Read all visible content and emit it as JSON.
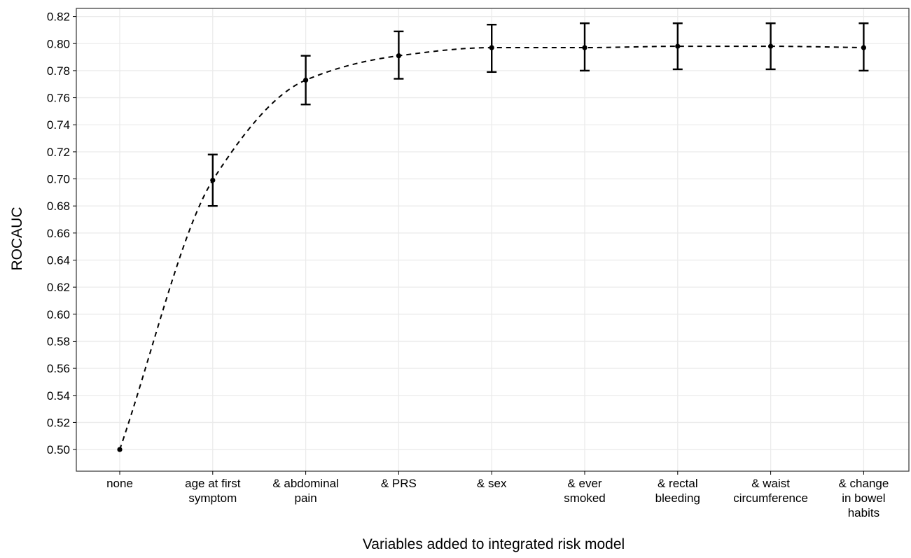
{
  "chart_data": {
    "type": "line",
    "title": "",
    "xlabel": "Variables added to integrated risk model",
    "ylabel": "ROCAUC",
    "categories": [
      [
        "none"
      ],
      [
        "age at first",
        "symptom"
      ],
      [
        "& abdominal",
        "pain"
      ],
      [
        "& PRS"
      ],
      [
        "& sex"
      ],
      [
        "& ever",
        "smoked"
      ],
      [
        "& rectal",
        "bleeding"
      ],
      [
        "& waist",
        "circumference"
      ],
      [
        "& change",
        "in bowel",
        "habits"
      ]
    ],
    "series": [
      {
        "values": [
          0.5,
          0.699,
          0.773,
          0.791,
          0.797,
          0.797,
          0.798,
          0.798,
          0.797
        ],
        "error_low": [
          0.5,
          0.68,
          0.755,
          0.774,
          0.779,
          0.78,
          0.781,
          0.781,
          0.78
        ],
        "error_high": [
          0.5,
          0.718,
          0.791,
          0.809,
          0.814,
          0.815,
          0.815,
          0.815,
          0.815
        ],
        "line_style": "dashed",
        "marker": "point",
        "color": "#000000"
      }
    ],
    "yticks": [
      "0.50",
      "0.52",
      "0.54",
      "0.56",
      "0.58",
      "0.60",
      "0.62",
      "0.64",
      "0.66",
      "0.68",
      "0.70",
      "0.72",
      "0.74",
      "0.76",
      "0.78",
      "0.80",
      "0.82"
    ],
    "ylim": [
      0.484,
      0.826
    ],
    "grid": true,
    "legend": "none",
    "colors": {
      "grid": "#ebebeb",
      "axis": "#000000",
      "line": "#000000"
    }
  }
}
